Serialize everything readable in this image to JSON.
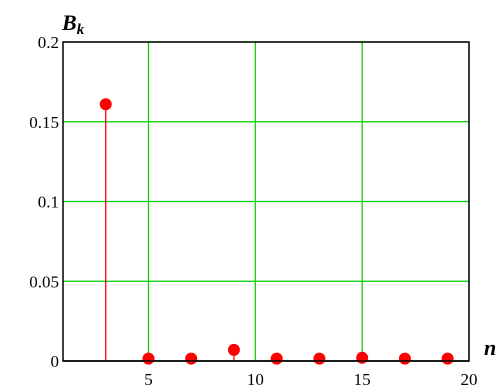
{
  "chart_data": {
    "type": "stem",
    "ylabel": "B",
    "ylabel_subscript": "k",
    "xlabel": "n",
    "xlim": [
      1,
      20
    ],
    "ylim": [
      0,
      0.2
    ],
    "x_ticks": [
      5,
      10,
      15,
      20
    ],
    "x_tick_labels": [
      "5",
      "10",
      "15",
      "20"
    ],
    "y_ticks": [
      0,
      0.05,
      0.1,
      0.15,
      0.2
    ],
    "y_tick_labels": [
      "0",
      "0.05",
      "0.1",
      "0.15",
      "0.2"
    ],
    "grid": true,
    "colors": {
      "marker": "#ff0000",
      "stem": "#ff0000",
      "grid": "#00cc00",
      "axis": "#000000",
      "frame": "#000000"
    },
    "series": [
      {
        "x": [
          3,
          5,
          7,
          9,
          11,
          13,
          15,
          17,
          19
        ],
        "values": [
          0.161,
          0.0015,
          0.0015,
          0.007,
          0.0015,
          0.0015,
          0.002,
          0.0015,
          0.0015
        ]
      }
    ]
  }
}
